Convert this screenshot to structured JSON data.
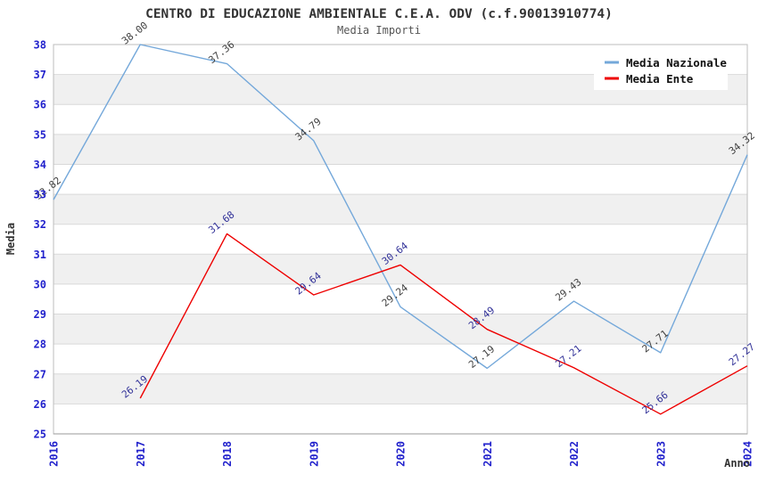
{
  "title": "CENTRO DI EDUCAZIONE AMBIENTALE C.E.A. ODV (c.f.90013910774)",
  "subtitle": "Media Importi",
  "chart_data": {
    "type": "line",
    "x": [
      "2016",
      "2017",
      "2018",
      "2019",
      "2020",
      "2021",
      "2022",
      "2023",
      "2024"
    ],
    "series": [
      {
        "name": "Media Nazionale",
        "color": "#74a8da",
        "label_color": "#404040",
        "values": [
          32.82,
          38.0,
          37.36,
          34.79,
          29.24,
          27.19,
          29.43,
          27.71,
          34.32
        ]
      },
      {
        "name": "Media Ente",
        "color": "#ee0000",
        "label_color": "#333399",
        "values": [
          null,
          26.19,
          31.68,
          29.64,
          30.64,
          28.49,
          27.21,
          25.66,
          27.27
        ]
      }
    ],
    "xlabel": "Anno",
    "ylabel": "Media",
    "ylim": [
      25,
      38
    ],
    "ytick_step": 1,
    "grid": true,
    "legend_position": "top-right",
    "styles": {
      "band_color": "#f0f0f0",
      "grid_color": "#d9d9d9",
      "plot_border_color": "#bdbdbd",
      "tick_label_color": "#2222cc",
      "legend_background": "#ffffff"
    }
  }
}
